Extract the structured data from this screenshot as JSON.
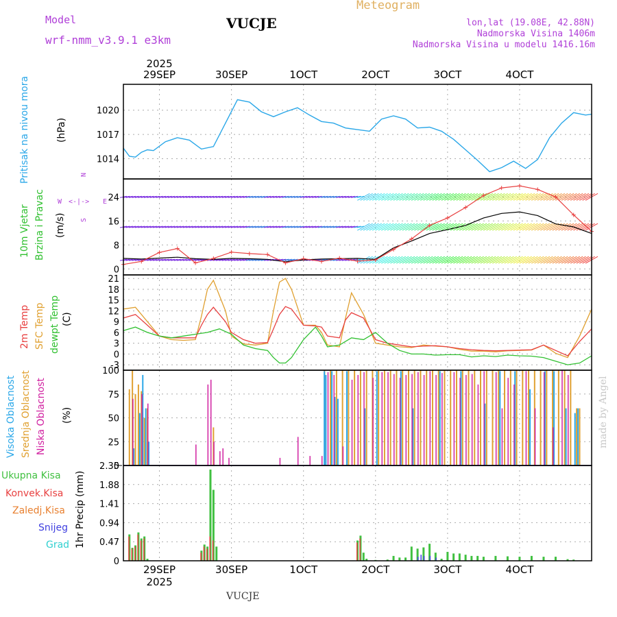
{
  "header": {
    "model_label": "Model",
    "model_name": "wrf-nmm_v3.9.1 e3km",
    "station": "VUCJE",
    "product": "Meteogram",
    "lonlat": "lon,lat (19.08E, 42.88N)",
    "elevation": "Nadmorska Visina 1406m",
    "model_elevation": "Nadmorska Visina u modelu 1416.16m",
    "footer_station": "VUCJE",
    "watermark": "made by Angel"
  },
  "colors": {
    "pressure": "#2aa7e8",
    "wind_speed": "#000000",
    "wind_gust": "#e84040",
    "t2m": "#e84040",
    "sfc_temp": "#e0a030",
    "dewpoint": "#30c030",
    "cloud_high": "#2aa7e8",
    "cloud_mid": "#e0a030",
    "cloud_low": "#d020a0",
    "precip_total": "#40c040",
    "precip_conv": "#e84040",
    "precip_frozen": "#e88030",
    "precip_snow": "#4040e0",
    "precip_hail": "#30d0d0",
    "title_purple": "#b040d8",
    "meteogram_gold": "#e0b060"
  },
  "dates": {
    "year": "2025",
    "top_labels": [
      "29SEP",
      "30SEP",
      "1OCT",
      "2OCT",
      "3OCT",
      "4OCT"
    ],
    "bottom_labels": [
      "29SEP",
      "30SEP",
      "1OCT",
      "2OCT",
      "3OCT",
      "4OCT"
    ]
  },
  "panels": {
    "pressure": {
      "label": "Pritisak na nivou mora",
      "unit": "(hPa)",
      "ticks": [
        "1020",
        "1017",
        "1014"
      ]
    },
    "wind": {
      "label_line1": "10m Vjetar",
      "label_line2": "Brzina i Pravac",
      "unit": "(m/s)",
      "ticks": [
        "24",
        "16",
        "8",
        "0"
      ],
      "compass": {
        "n": "N",
        "w": "W",
        "e": "E",
        "s": "S"
      }
    },
    "temp": {
      "label1": "2m Temp",
      "label2": "SFC Temp",
      "label3": "dewpt Temp",
      "unit": "(C)",
      "ticks": [
        "21",
        "18",
        "15",
        "12",
        "9",
        "6",
        "3",
        "0",
        "-3"
      ]
    },
    "cloud": {
      "label1": "Visoka Oblacnost",
      "label2": "Srednja Oblacnost",
      "label3": "Niska Oblacnost",
      "unit": "(%)",
      "ticks": [
        "100",
        "75",
        "50",
        "25",
        "0"
      ]
    },
    "precip": {
      "legend": [
        "Ukupna Kisa",
        "Konvek.Kisa",
        "Zaledj.Kisa",
        "Snijeg",
        "Grad"
      ],
      "unit": "1hr Precip (mm)",
      "ticks": [
        "2.35",
        "1.88",
        "1.41",
        "0.94",
        "0.47",
        "0"
      ]
    }
  },
  "chart_data": {
    "type": "line",
    "time_axis": "hours from 28SEP 12UTC (0-156)",
    "pressure_hpa": {
      "x": [
        0,
        2,
        4,
        6,
        8,
        10,
        14,
        18,
        22,
        26,
        30,
        34,
        38,
        42,
        46,
        50,
        54,
        58,
        62,
        66,
        70,
        74,
        78,
        82,
        86,
        90,
        94,
        98,
        102,
        106,
        110,
        114,
        118,
        122,
        126,
        130,
        134,
        138,
        142,
        146,
        150,
        154,
        156
      ],
      "y": [
        1015.3,
        1014.3,
        1014.2,
        1014.8,
        1015.1,
        1015.0,
        1016.1,
        1016.6,
        1016.3,
        1015.2,
        1015.5,
        1018.4,
        1021.3,
        1021.0,
        1019.8,
        1019.2,
        1019.8,
        1020.3,
        1019.4,
        1018.6,
        1018.4,
        1017.8,
        1017.6,
        1017.4,
        1018.9,
        1019.3,
        1018.9,
        1017.8,
        1017.9,
        1017.4,
        1016.4,
        1015.1,
        1013.8,
        1012.4,
        1012.9,
        1013.7,
        1012.8,
        1013.9,
        1016.6,
        1018.4,
        1019.7,
        1019.4,
        1019.5
      ],
      "ylim": [
        1011.5,
        1023.2
      ]
    },
    "wind_speed_ms": {
      "x": [
        0,
        6,
        12,
        18,
        24,
        30,
        36,
        42,
        48,
        54,
        60,
        66,
        72,
        78,
        84,
        90,
        96,
        102,
        108,
        114,
        120,
        126,
        132,
        138,
        144,
        150,
        156
      ],
      "y": [
        3.5,
        3.3,
        3.6,
        3.9,
        3.4,
        3.2,
        3.5,
        3.4,
        3.2,
        2.4,
        3.0,
        3.3,
        3.4,
        3.5,
        3.2,
        7.0,
        9.3,
        11.8,
        13.1,
        14.5,
        17.0,
        18.5,
        19.0,
        17.8,
        15.0,
        14.0,
        11.8
      ],
      "ylim": [
        -2,
        30
      ]
    },
    "wind_gust_ms": {
      "x": [
        0,
        6,
        12,
        18,
        24,
        30,
        36,
        42,
        48,
        54,
        60,
        66,
        72,
        78,
        84,
        90,
        96,
        102,
        108,
        114,
        120,
        126,
        132,
        138,
        144,
        150,
        156
      ],
      "y": [
        1.5,
        2.5,
        5.5,
        6.8,
        2.0,
        3.5,
        5.6,
        5.1,
        4.8,
        2.0,
        3.4,
        2.5,
        3.6,
        2.6,
        3.0,
        6.5,
        10.0,
        14.5,
        17.0,
        20.5,
        24.5,
        27.0,
        27.7,
        26.5,
        24.0,
        18.0,
        12.5
      ],
      "ylim": [
        -2,
        30
      ]
    },
    "wind_direction_rows_ms": [
      24,
      14,
      3
    ],
    "t2m_c": {
      "x": [
        0,
        4,
        8,
        12,
        16,
        20,
        24,
        26,
        28,
        30,
        34,
        36,
        40,
        44,
        48,
        50,
        52,
        54,
        56,
        60,
        64,
        66,
        68,
        72,
        74,
        76,
        80,
        84,
        88,
        92,
        96,
        100,
        104,
        108,
        112,
        116,
        120,
        124,
        128,
        132,
        136,
        140,
        144,
        148,
        152,
        156
      ],
      "y": [
        10.0,
        11.0,
        8.0,
        5.0,
        4.5,
        4.5,
        4.5,
        8.0,
        11.0,
        13.0,
        9.0,
        6.0,
        4.0,
        3.0,
        3.2,
        7.0,
        11.0,
        13.2,
        12.5,
        8.0,
        7.8,
        7.5,
        5.0,
        4.5,
        9.5,
        11.5,
        10.0,
        4.0,
        3.0,
        2.5,
        2.0,
        2.2,
        2.3,
        2.0,
        1.5,
        1.2,
        1.0,
        0.9,
        1.0,
        1.1,
        1.2,
        2.5,
        1.0,
        -0.5,
        3.5,
        7.0
      ],
      "ylim": [
        -4.5,
        22
      ]
    },
    "sfc_temp_c": {
      "x": [
        0,
        4,
        8,
        12,
        16,
        20,
        24,
        26,
        28,
        30,
        34,
        36,
        40,
        44,
        48,
        50,
        52,
        54,
        56,
        60,
        64,
        66,
        68,
        72,
        74,
        76,
        80,
        84,
        88,
        92,
        96,
        100,
        104,
        108,
        112,
        116,
        120,
        124,
        128,
        132,
        136,
        140,
        144,
        148,
        152,
        156
      ],
      "y": [
        12.5,
        13.0,
        9.0,
        5.0,
        4.0,
        3.8,
        4.0,
        10.5,
        18.0,
        20.5,
        12.0,
        5.0,
        2.8,
        2.5,
        3.0,
        12.0,
        20.0,
        21.0,
        18.0,
        8.0,
        8.0,
        6.0,
        2.5,
        2.0,
        10.0,
        17.0,
        11.0,
        3.0,
        2.5,
        2.0,
        1.8,
        2.5,
        2.2,
        2.0,
        1.3,
        0.8,
        0.8,
        0.6,
        0.9,
        1.0,
        1.1,
        2.5,
        0.2,
        -1.0,
        5.0,
        12.5
      ],
      "ylim": [
        -4.5,
        22
      ]
    },
    "dewpoint_c": {
      "x": [
        0,
        4,
        8,
        12,
        16,
        20,
        24,
        28,
        32,
        36,
        40,
        44,
        48,
        50,
        52,
        54,
        56,
        60,
        64,
        66,
        68,
        72,
        76,
        80,
        84,
        88,
        92,
        96,
        100,
        104,
        108,
        112,
        116,
        120,
        124,
        128,
        132,
        136,
        140,
        144,
        148,
        152,
        156
      ],
      "y": [
        6.5,
        7.5,
        6.0,
        5.0,
        4.5,
        5.0,
        5.5,
        6.0,
        7.0,
        5.5,
        2.5,
        1.5,
        1.0,
        -1.0,
        -2.5,
        -2.5,
        -1.0,
        4.0,
        7.5,
        5.0,
        2.0,
        2.5,
        4.5,
        4.0,
        6.0,
        3.0,
        1.0,
        0.0,
        0.0,
        -0.3,
        -0.2,
        -0.2,
        -0.8,
        -0.5,
        -0.7,
        -0.3,
        -0.5,
        -0.6,
        -1.0,
        -2.0,
        -3.0,
        -2.5,
        -0.5
      ],
      "ylim": [
        -4.5,
        22
      ]
    },
    "cloud_pct": {
      "ylim": [
        0,
        100
      ],
      "high": {
        "x": [
          3,
          5,
          6,
          7,
          8,
          66.5,
          67,
          69,
          70,
          71,
          74,
          80,
          84,
          92,
          96,
          105,
          112,
          120,
          125,
          130,
          135,
          140,
          143,
          147,
          150,
          151
        ],
        "y": [
          18,
          55,
          95,
          60,
          25,
          99,
          95,
          99,
          72,
          70,
          99,
          60,
          99,
          99,
          60,
          99,
          99,
          65,
          99,
          99,
          80,
          99,
          99,
          60,
          55,
          60
        ]
      },
      "mid": {
        "x": [
          2,
          3,
          4,
          5,
          6,
          7,
          8,
          30,
          67,
          69,
          71,
          73,
          75,
          77,
          79,
          81,
          83,
          85,
          87,
          89,
          91,
          93,
          95,
          97,
          99,
          101,
          103,
          105,
          107,
          109,
          111,
          113,
          115,
          117,
          119,
          121,
          123,
          125,
          127,
          129,
          131,
          133,
          135,
          137,
          139,
          141,
          143,
          145,
          147,
          149,
          151,
          152
        ],
        "y": [
          80,
          100,
          75,
          85,
          78,
          50,
          60,
          40,
          100,
          100,
          100,
          100,
          100,
          100,
          100,
          100,
          100,
          100,
          100,
          100,
          100,
          100,
          100,
          100,
          100,
          100,
          100,
          100,
          100,
          100,
          100,
          100,
          100,
          100,
          100,
          100,
          100,
          100,
          100,
          100,
          100,
          100,
          100,
          100,
          100,
          100,
          100,
          100,
          100,
          100,
          60,
          60
        ]
      },
      "low": {
        "x": [
          3,
          6,
          8,
          24,
          28,
          29,
          30,
          32,
          33,
          35,
          52,
          58,
          62,
          66,
          68,
          70,
          73,
          76,
          78,
          80,
          83,
          86,
          88,
          90,
          92,
          94,
          96,
          98,
          100,
          102,
          104,
          106,
          110,
          112,
          114,
          116,
          118,
          120,
          124,
          126,
          128,
          130,
          134,
          137,
          140,
          143,
          146,
          148
        ],
        "y": [
          70,
          75,
          65,
          22,
          85,
          90,
          25,
          15,
          18,
          8,
          8,
          30,
          10,
          10,
          98,
          95,
          20,
          90,
          95,
          98,
          92,
          98,
          98,
          96,
          92,
          95,
          96,
          98,
          95,
          99,
          95,
          97,
          98,
          92,
          95,
          96,
          85,
          99,
          98,
          60,
          92,
          85,
          99,
          60,
          98,
          40,
          100,
          95
        ]
      }
    },
    "precip_mm": {
      "ylim": [
        0,
        2.35
      ],
      "total": {
        "x": [
          2,
          3,
          4,
          5,
          6,
          7,
          8,
          26,
          27,
          28,
          29,
          30,
          31,
          78,
          79,
          80,
          81,
          84,
          88,
          90,
          92,
          94,
          96,
          98,
          100,
          102,
          104,
          106,
          108,
          110,
          112,
          114,
          116,
          118,
          120,
          124,
          128,
          132,
          136,
          140,
          144,
          148,
          150
        ],
        "y": [
          0.65,
          0.32,
          0.38,
          0.7,
          0.55,
          0.6,
          0.05,
          0.25,
          0.4,
          0.35,
          2.25,
          1.75,
          0.35,
          0.5,
          0.62,
          0.2,
          0.05,
          0.02,
          0.03,
          0.12,
          0.08,
          0.08,
          0.35,
          0.3,
          0.33,
          0.42,
          0.2,
          0.05,
          0.22,
          0.18,
          0.18,
          0.15,
          0.12,
          0.12,
          0.1,
          0.12,
          0.11,
          0.1,
          0.12,
          0.1,
          0.1,
          0.04,
          0.03
        ]
      },
      "convective": {
        "x": [
          2,
          3,
          4,
          5,
          6,
          7,
          26,
          27,
          28,
          29,
          30,
          78,
          79
        ],
        "y": [
          0.6,
          0.3,
          0.35,
          0.65,
          0.5,
          0.55,
          0.2,
          0.35,
          0.3,
          0.6,
          0.5,
          0.45,
          0.55
        ]
      },
      "snow": {
        "x": [
          98,
          99,
          100,
          102,
          104
        ],
        "y": [
          0.1,
          0.15,
          0.12,
          0.12,
          0.08
        ]
      }
    }
  }
}
